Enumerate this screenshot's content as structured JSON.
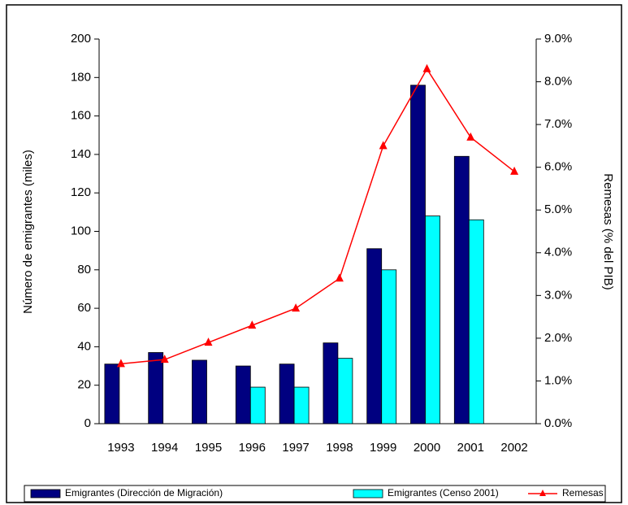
{
  "chart_data": {
    "type": "bar",
    "categories": [
      "1993",
      "1994",
      "1995",
      "1996",
      "1997",
      "1998",
      "1999",
      "2000",
      "2001",
      "2002"
    ],
    "series": [
      {
        "name": "Emigrantes (Dirección de Migración)",
        "color": "#000080",
        "values": [
          31,
          37,
          33,
          30,
          31,
          42,
          91,
          176,
          139,
          null
        ]
      },
      {
        "name": "Emigrantes (Censo 2001)",
        "color": "#00ffff",
        "values": [
          null,
          null,
          null,
          19,
          19,
          34,
          80,
          108,
          106,
          null
        ]
      },
      {
        "name": "Remesas",
        "type": "line",
        "axis": "y2",
        "color": "#ff0000",
        "values": [
          1.4,
          1.5,
          1.9,
          2.3,
          2.7,
          3.4,
          6.5,
          8.3,
          6.7,
          5.9
        ]
      }
    ],
    "ylabel": "Número de emigrantes (miles)",
    "y2label": "Remesas (% del PIB)",
    "ylim": [
      0,
      200
    ],
    "yticks": [
      0,
      20,
      40,
      60,
      80,
      100,
      120,
      140,
      160,
      180,
      200
    ],
    "y2lim": [
      0,
      9
    ],
    "y2ticks": [
      {
        "value": 0,
        "label": "0.0%"
      },
      {
        "value": 1,
        "label": "1.0%"
      },
      {
        "value": 2,
        "label": "2.0%"
      },
      {
        "value": 3,
        "label": "3.0%"
      },
      {
        "value": 4,
        "label": "4.0%"
      },
      {
        "value": 5,
        "label": "5.0%"
      },
      {
        "value": 6,
        "label": "6.0%"
      },
      {
        "value": 7,
        "label": "7.0%"
      },
      {
        "value": 8,
        "label": "8.0%"
      },
      {
        "value": 9,
        "label": "9.0%"
      }
    ],
    "grid": false,
    "legend": "bottom"
  }
}
